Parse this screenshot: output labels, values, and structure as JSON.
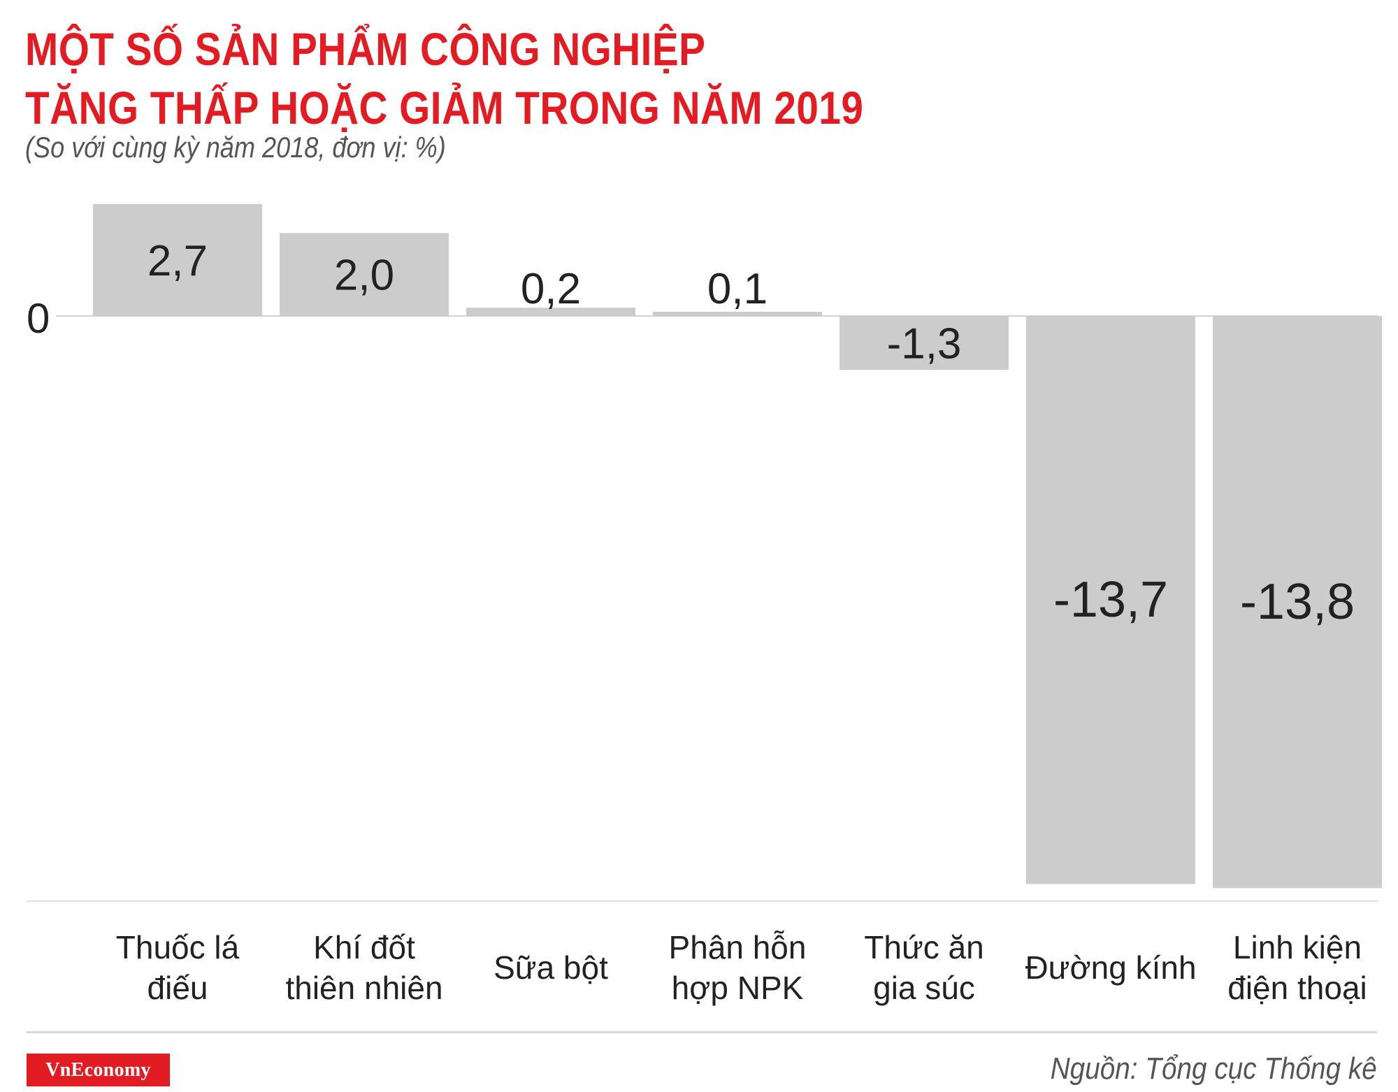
{
  "title": {
    "line1": "MỘT SỐ SẢN PHẨM CÔNG NGHIỆP",
    "line2": "TĂNG THẤP HOẶC GIẢM TRONG NĂM 2019"
  },
  "subtitle": "(So với cùng kỳ năm 2018, đơn vị: %)",
  "source": "Nguồn: Tổng cục Thống kê",
  "logo": "VnEconomy",
  "colors": {
    "title": "#e31b23",
    "bar": "#cccccc",
    "logo_bg": "#e31b23"
  },
  "chart_data": {
    "type": "bar",
    "categories": [
      [
        "Thuốc lá",
        "điếu"
      ],
      [
        "Khí đốt",
        "thiên nhiên"
      ],
      [
        "Sữa bột"
      ],
      [
        "Phân hỗn",
        "hợp NPK"
      ],
      [
        "Thức ăn",
        "gia súc"
      ],
      [
        "Đường kính"
      ],
      [
        "Linh kiện",
        "điện thoại"
      ]
    ],
    "values": [
      2.7,
      2.0,
      0.2,
      0.1,
      -1.3,
      -13.7,
      -13.8
    ],
    "value_labels": [
      "2,7",
      "2,0",
      "0,2",
      "0,1",
      "-1,3",
      "-13,7",
      "-13,8"
    ],
    "zero_label": "0",
    "ylim": [
      -13.8,
      2.7
    ],
    "grid": false,
    "legend": "none"
  }
}
